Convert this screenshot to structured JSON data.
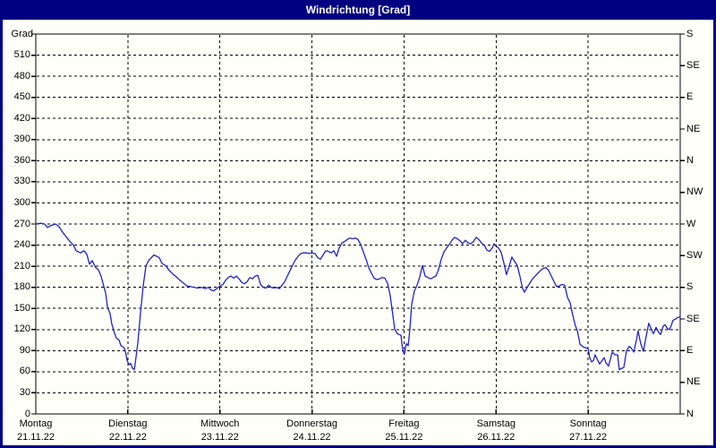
{
  "window": {
    "title": "Windrichtung [Grad]"
  },
  "colors": {
    "titlebar": "#000080",
    "window_border": "#000080",
    "panel_bg": "#fffffa",
    "axis": "#000000",
    "grid": "#000000",
    "line": "#2222c2",
    "text": "#000000",
    "title_text": "#ffffff"
  },
  "chart_data": {
    "type": "line",
    "title": "Windrichtung [Grad]",
    "grid": "dashed",
    "legend": "none",
    "y_axis_left": {
      "label": "Grad",
      "range": [
        0,
        540
      ],
      "tick_step": 30,
      "ticks": [
        0,
        30,
        60,
        90,
        120,
        150,
        180,
        210,
        240,
        270,
        300,
        330,
        360,
        390,
        420,
        450,
        480,
        510,
        540
      ],
      "labeled_ticks": [
        0,
        30,
        60,
        90,
        120,
        150,
        180,
        210,
        240,
        270,
        300,
        330,
        360,
        390,
        420,
        450,
        480,
        510
      ]
    },
    "y_axis_right": {
      "unit": "compass",
      "ticks": [
        {
          "deg": 540,
          "label": "S"
        },
        {
          "deg": 495,
          "label": "SE"
        },
        {
          "deg": 450,
          "label": "E"
        },
        {
          "deg": 405,
          "label": "NE"
        },
        {
          "deg": 360,
          "label": "N"
        },
        {
          "deg": 315,
          "label": "NW"
        },
        {
          "deg": 270,
          "label": "W"
        },
        {
          "deg": 225,
          "label": "SW"
        },
        {
          "deg": 180,
          "label": "S"
        },
        {
          "deg": 135,
          "label": "SE"
        },
        {
          "deg": 90,
          "label": "E"
        },
        {
          "deg": 45,
          "label": "NE"
        },
        {
          "deg": 0,
          "label": "N"
        }
      ]
    },
    "x_axis": {
      "unit": "hours",
      "range": [
        0,
        168
      ],
      "days": [
        {
          "name": "Montag",
          "date": "21.11.22"
        },
        {
          "name": "Dienstag",
          "date": "22.11.22"
        },
        {
          "name": "Mittwoch",
          "date": "23.11.22"
        },
        {
          "name": "Donnerstag",
          "date": "24.11.22"
        },
        {
          "name": "Freitag",
          "date": "25.11.22"
        },
        {
          "name": "Samstag",
          "date": "26.11.22"
        },
        {
          "name": "Sonntag",
          "date": "27.11.22"
        }
      ]
    },
    "series": [
      {
        "name": "Windrichtung",
        "unit": "Grad",
        "points": [
          [
            0,
            270
          ],
          [
            1.2,
            271
          ],
          [
            2.3,
            270
          ],
          [
            3,
            265
          ],
          [
            4,
            268
          ],
          [
            5.1,
            270
          ],
          [
            6.1,
            266
          ],
          [
            7,
            258
          ],
          [
            8.2,
            250
          ],
          [
            8.9,
            245
          ],
          [
            9.8,
            240
          ],
          [
            10.5,
            232
          ],
          [
            11.7,
            229
          ],
          [
            12.6,
            232
          ],
          [
            13.3,
            227
          ],
          [
            14,
            213
          ],
          [
            14.7,
            218
          ],
          [
            15.6,
            208
          ],
          [
            16.3,
            205
          ],
          [
            17,
            196
          ],
          [
            17.5,
            186
          ],
          [
            18.2,
            172
          ],
          [
            18.7,
            152
          ],
          [
            19.4,
            142
          ],
          [
            19.8,
            128
          ],
          [
            20.5,
            115
          ],
          [
            21,
            108
          ],
          [
            21.7,
            105
          ],
          [
            22.2,
            97
          ],
          [
            22.9,
            95
          ],
          [
            23.3,
            90
          ],
          [
            23.8,
            76
          ],
          [
            24.3,
            70
          ],
          [
            24.7,
            72
          ],
          [
            25.2,
            65
          ],
          [
            25.7,
            63
          ],
          [
            26.1,
            80
          ],
          [
            26.6,
            101
          ],
          [
            27.3,
            144
          ],
          [
            28,
            182
          ],
          [
            28.7,
            210
          ],
          [
            29.4,
            218
          ],
          [
            30.1,
            222
          ],
          [
            30.8,
            226
          ],
          [
            31.5,
            224
          ],
          [
            32.2,
            222
          ],
          [
            32.9,
            214
          ],
          [
            33.8,
            211
          ],
          [
            34.8,
            204
          ],
          [
            35.7,
            199
          ],
          [
            36.6,
            195
          ],
          [
            37.6,
            190
          ],
          [
            38.5,
            186
          ],
          [
            39.4,
            182
          ],
          [
            40.4,
            181
          ],
          [
            41.3,
            180
          ],
          [
            42.2,
            179
          ],
          [
            43.2,
            180
          ],
          [
            44.1,
            178
          ],
          [
            45,
            180
          ],
          [
            45.7,
            176
          ],
          [
            46.4,
            175
          ],
          [
            47.1,
            178
          ],
          [
            47.8,
            181
          ],
          [
            48.8,
            184
          ],
          [
            49.5,
            190
          ],
          [
            50.2,
            194
          ],
          [
            50.9,
            196
          ],
          [
            51.6,
            193
          ],
          [
            52.3,
            196
          ],
          [
            53,
            192
          ],
          [
            53.7,
            187
          ],
          [
            54.4,
            185
          ],
          [
            55.1,
            188
          ],
          [
            55.8,
            194
          ],
          [
            56.5,
            192
          ],
          [
            57.2,
            196
          ],
          [
            57.9,
            197
          ],
          [
            58.6,
            184
          ],
          [
            59.3,
            180
          ],
          [
            60,
            179
          ],
          [
            60.7,
            183
          ],
          [
            61.4,
            180
          ],
          [
            62.1,
            179
          ],
          [
            62.8,
            180
          ],
          [
            63.5,
            178
          ],
          [
            64.2,
            183
          ],
          [
            64.9,
            188
          ],
          [
            65.6,
            196
          ],
          [
            66.3,
            204
          ],
          [
            67,
            212
          ],
          [
            67.7,
            219
          ],
          [
            68.4,
            224
          ],
          [
            69.1,
            228
          ],
          [
            69.8,
            229
          ],
          [
            70.5,
            229
          ],
          [
            71.2,
            228
          ],
          [
            71.9,
            229
          ],
          [
            72.8,
            228
          ],
          [
            73.5,
            222
          ],
          [
            74.2,
            220
          ],
          [
            74.9,
            226
          ],
          [
            75.6,
            232
          ],
          [
            76.3,
            231
          ],
          [
            77,
            229
          ],
          [
            77.7,
            232
          ],
          [
            78.4,
            224
          ],
          [
            79.1,
            236
          ],
          [
            79.8,
            243
          ],
          [
            80.5,
            245
          ],
          [
            81.2,
            248
          ],
          [
            81.9,
            250
          ],
          [
            82.6,
            249
          ],
          [
            83.3,
            250
          ],
          [
            84,
            248
          ],
          [
            84.7,
            241
          ],
          [
            85.4,
            230
          ],
          [
            86.1,
            220
          ],
          [
            86.8,
            208
          ],
          [
            87.5,
            200
          ],
          [
            88.2,
            193
          ],
          [
            88.9,
            191
          ],
          [
            89.6,
            192
          ],
          [
            90.3,
            194
          ],
          [
            91,
            193
          ],
          [
            91.7,
            186
          ],
          [
            92.4,
            168
          ],
          [
            93.1,
            140
          ],
          [
            93.6,
            120
          ],
          [
            94.3,
            114
          ],
          [
            94.7,
            113
          ],
          [
            95.2,
            112
          ],
          [
            95.7,
            89
          ],
          [
            96.1,
            85
          ],
          [
            96.6,
            100
          ],
          [
            97.1,
            97
          ],
          [
            97.5,
            120
          ],
          [
            98,
            156
          ],
          [
            98.7,
            175
          ],
          [
            99.4,
            183
          ],
          [
            100.1,
            195
          ],
          [
            100.8,
            211
          ],
          [
            101.5,
            196
          ],
          [
            102.2,
            194
          ],
          [
            102.9,
            192
          ],
          [
            103.6,
            194
          ],
          [
            104.3,
            196
          ],
          [
            105,
            205
          ],
          [
            105.7,
            220
          ],
          [
            106.4,
            230
          ],
          [
            107.1,
            236
          ],
          [
            107.8,
            241
          ],
          [
            108.5,
            247
          ],
          [
            109.2,
            251
          ],
          [
            109.9,
            249
          ],
          [
            110.6,
            246
          ],
          [
            111.3,
            242
          ],
          [
            112,
            247
          ],
          [
            112.7,
            243
          ],
          [
            113.4,
            242
          ],
          [
            114.1,
            245
          ],
          [
            114.8,
            251
          ],
          [
            115.5,
            248
          ],
          [
            116.2,
            243
          ],
          [
            116.9,
            240
          ],
          [
            117.6,
            233
          ],
          [
            118.3,
            231
          ],
          [
            119,
            236
          ],
          [
            119.5,
            242
          ],
          [
            119.9,
            239
          ],
          [
            120.6,
            236
          ],
          [
            121.3,
            230
          ],
          [
            122,
            215
          ],
          [
            122.7,
            198
          ],
          [
            123.4,
            210
          ],
          [
            124.1,
            223
          ],
          [
            124.8,
            217
          ],
          [
            125.5,
            211
          ],
          [
            126.2,
            196
          ],
          [
            126.9,
            178
          ],
          [
            127.4,
            173
          ],
          [
            128.1,
            180
          ],
          [
            128.8,
            186
          ],
          [
            129.5,
            192
          ],
          [
            130.2,
            196
          ],
          [
            130.9,
            200
          ],
          [
            131.6,
            204
          ],
          [
            132.3,
            207
          ],
          [
            133,
            208
          ],
          [
            133.7,
            204
          ],
          [
            134.4,
            196
          ],
          [
            135.1,
            188
          ],
          [
            135.8,
            181
          ],
          [
            136.5,
            182
          ],
          [
            137.2,
            184
          ],
          [
            137.9,
            183
          ],
          [
            138.6,
            166
          ],
          [
            139.3,
            158
          ],
          [
            140,
            140
          ],
          [
            140.7,
            125
          ],
          [
            141.2,
            118
          ],
          [
            141.9,
            99
          ],
          [
            142.3,
            97
          ],
          [
            142.8,
            95
          ],
          [
            143.5,
            94
          ],
          [
            144,
            93
          ],
          [
            144.4,
            80
          ],
          [
            144.9,
            74
          ],
          [
            145.4,
            76
          ],
          [
            145.8,
            84
          ],
          [
            146.5,
            76
          ],
          [
            147,
            71
          ],
          [
            147.5,
            75
          ],
          [
            148.2,
            80
          ],
          [
            148.6,
            73
          ],
          [
            149.3,
            68
          ],
          [
            149.8,
            78
          ],
          [
            150.3,
            88
          ],
          [
            151,
            84
          ],
          [
            151.7,
            84
          ],
          [
            152.1,
            63
          ],
          [
            152.8,
            65
          ],
          [
            153.3,
            66
          ],
          [
            154,
            90
          ],
          [
            154.7,
            96
          ],
          [
            155.2,
            94
          ],
          [
            155.9,
            88
          ],
          [
            156.6,
            105
          ],
          [
            157,
            118
          ],
          [
            157.7,
            100
          ],
          [
            158.4,
            89
          ],
          [
            159.1,
            110
          ],
          [
            159.8,
            129
          ],
          [
            160.5,
            120
          ],
          [
            161,
            114
          ],
          [
            161.7,
            123
          ],
          [
            162.4,
            116
          ],
          [
            162.9,
            113
          ],
          [
            163.6,
            125
          ],
          [
            164,
            127
          ],
          [
            164.7,
            121
          ],
          [
            165.2,
            120
          ],
          [
            165.7,
            126
          ],
          [
            166.1,
            133
          ],
          [
            166.8,
            135
          ],
          [
            167.3,
            137
          ],
          [
            168,
            138
          ]
        ]
      }
    ]
  }
}
